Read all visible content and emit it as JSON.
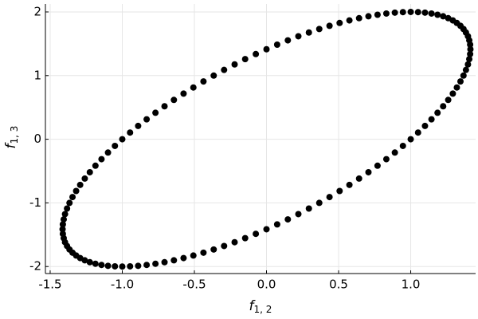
{
  "chart_data": {
    "type": "scatter",
    "xlabel": {
      "symbol": "f",
      "subscript": "1, 2"
    },
    "ylabel": {
      "symbol": "f",
      "subscript": "1, 3"
    },
    "color": "#000000",
    "grid": true,
    "xlim": [
      -1.533,
      1.45
    ],
    "ylim": [
      -2.11,
      2.125
    ],
    "xticks": [
      -1.5,
      {
        "value": -1,
        "label": "-1.0"
      },
      -0.5,
      {
        "value": 0,
        "label": "0.0"
      },
      0.5,
      {
        "value": 1,
        "label": "1.0"
      }
    ],
    "yticks": [
      -2,
      -1,
      0,
      1,
      2
    ],
    "x": [
      1,
      1.051,
      1.099,
      1.144,
      1.186,
      1.225,
      1.26,
      1.292,
      1.32,
      1.345,
      1.366,
      1.383,
      1.397,
      1.406,
      1.412,
      1.414,
      1.412,
      1.406,
      1.397,
      1.383,
      1.366,
      1.345,
      1.32,
      1.292,
      1.26,
      1.225,
      1.186,
      1.144,
      1.099,
      1.051,
      1,
      0.946,
      0.89,
      0.831,
      0.77,
      0.707,
      0.642,
      0.575,
      0.507,
      0.437,
      0.366,
      0.294,
      0.221,
      0.148,
      0.074,
      0,
      -0.074,
      -0.148,
      -0.221,
      -0.294,
      -0.366,
      -0.437,
      -0.507,
      -0.575,
      -0.642,
      -0.707,
      -0.77,
      -0.831,
      -0.89,
      -0.946,
      -1,
      -1.051,
      -1.099,
      -1.144,
      -1.186,
      -1.225,
      -1.26,
      -1.292,
      -1.32,
      -1.345,
      -1.366,
      -1.383,
      -1.397,
      -1.406,
      -1.412,
      -1.414,
      -1.412,
      -1.406,
      -1.397,
      -1.383,
      -1.366,
      -1.345,
      -1.32,
      -1.292,
      -1.26,
      -1.225,
      -1.186,
      -1.144,
      -1.099,
      -1.051,
      -1,
      -0.946,
      -0.89,
      -0.831,
      -0.77,
      -0.707,
      -0.642,
      -0.575,
      -0.507,
      -0.437,
      -0.366,
      -0.294,
      -0.221,
      -0.148,
      -0.074,
      0,
      0.074,
      0.148,
      0.221,
      0.294,
      0.366,
      0.437,
      0.507,
      0.575,
      0.642,
      0.707,
      0.77,
      0.831,
      0.89,
      0.946
    ],
    "y": [
      0,
      0.105,
      0.209,
      0.313,
      0.416,
      0.518,
      0.618,
      0.717,
      0.813,
      0.908,
      1,
      1.089,
      1.176,
      1.259,
      1.338,
      1.414,
      1.486,
      1.554,
      1.618,
      1.677,
      1.732,
      1.782,
      1.827,
      1.867,
      1.902,
      1.932,
      1.956,
      1.975,
      1.989,
      1.997,
      2,
      1.997,
      1.989,
      1.975,
      1.956,
      1.932,
      1.902,
      1.867,
      1.827,
      1.782,
      1.732,
      1.677,
      1.618,
      1.554,
      1.486,
      1.414,
      1.338,
      1.259,
      1.176,
      1.089,
      1,
      0.908,
      0.813,
      0.717,
      0.618,
      0.518,
      0.416,
      0.313,
      0.209,
      0.105,
      0,
      -0.105,
      -0.209,
      -0.313,
      -0.416,
      -0.518,
      -0.618,
      -0.717,
      -0.813,
      -0.908,
      -1,
      -1.089,
      -1.176,
      -1.259,
      -1.338,
      -1.414,
      -1.486,
      -1.554,
      -1.618,
      -1.677,
      -1.732,
      -1.782,
      -1.827,
      -1.867,
      -1.902,
      -1.932,
      -1.956,
      -1.975,
      -1.989,
      -1.997,
      -2,
      -1.997,
      -1.989,
      -1.975,
      -1.956,
      -1.932,
      -1.902,
      -1.867,
      -1.827,
      -1.782,
      -1.732,
      -1.677,
      -1.618,
      -1.554,
      -1.486,
      -1.414,
      -1.338,
      -1.259,
      -1.176,
      -1.089,
      -1,
      -0.908,
      -0.813,
      -0.717,
      -0.618,
      -0.518,
      -0.416,
      -0.313,
      -0.209,
      -0.105
    ]
  }
}
